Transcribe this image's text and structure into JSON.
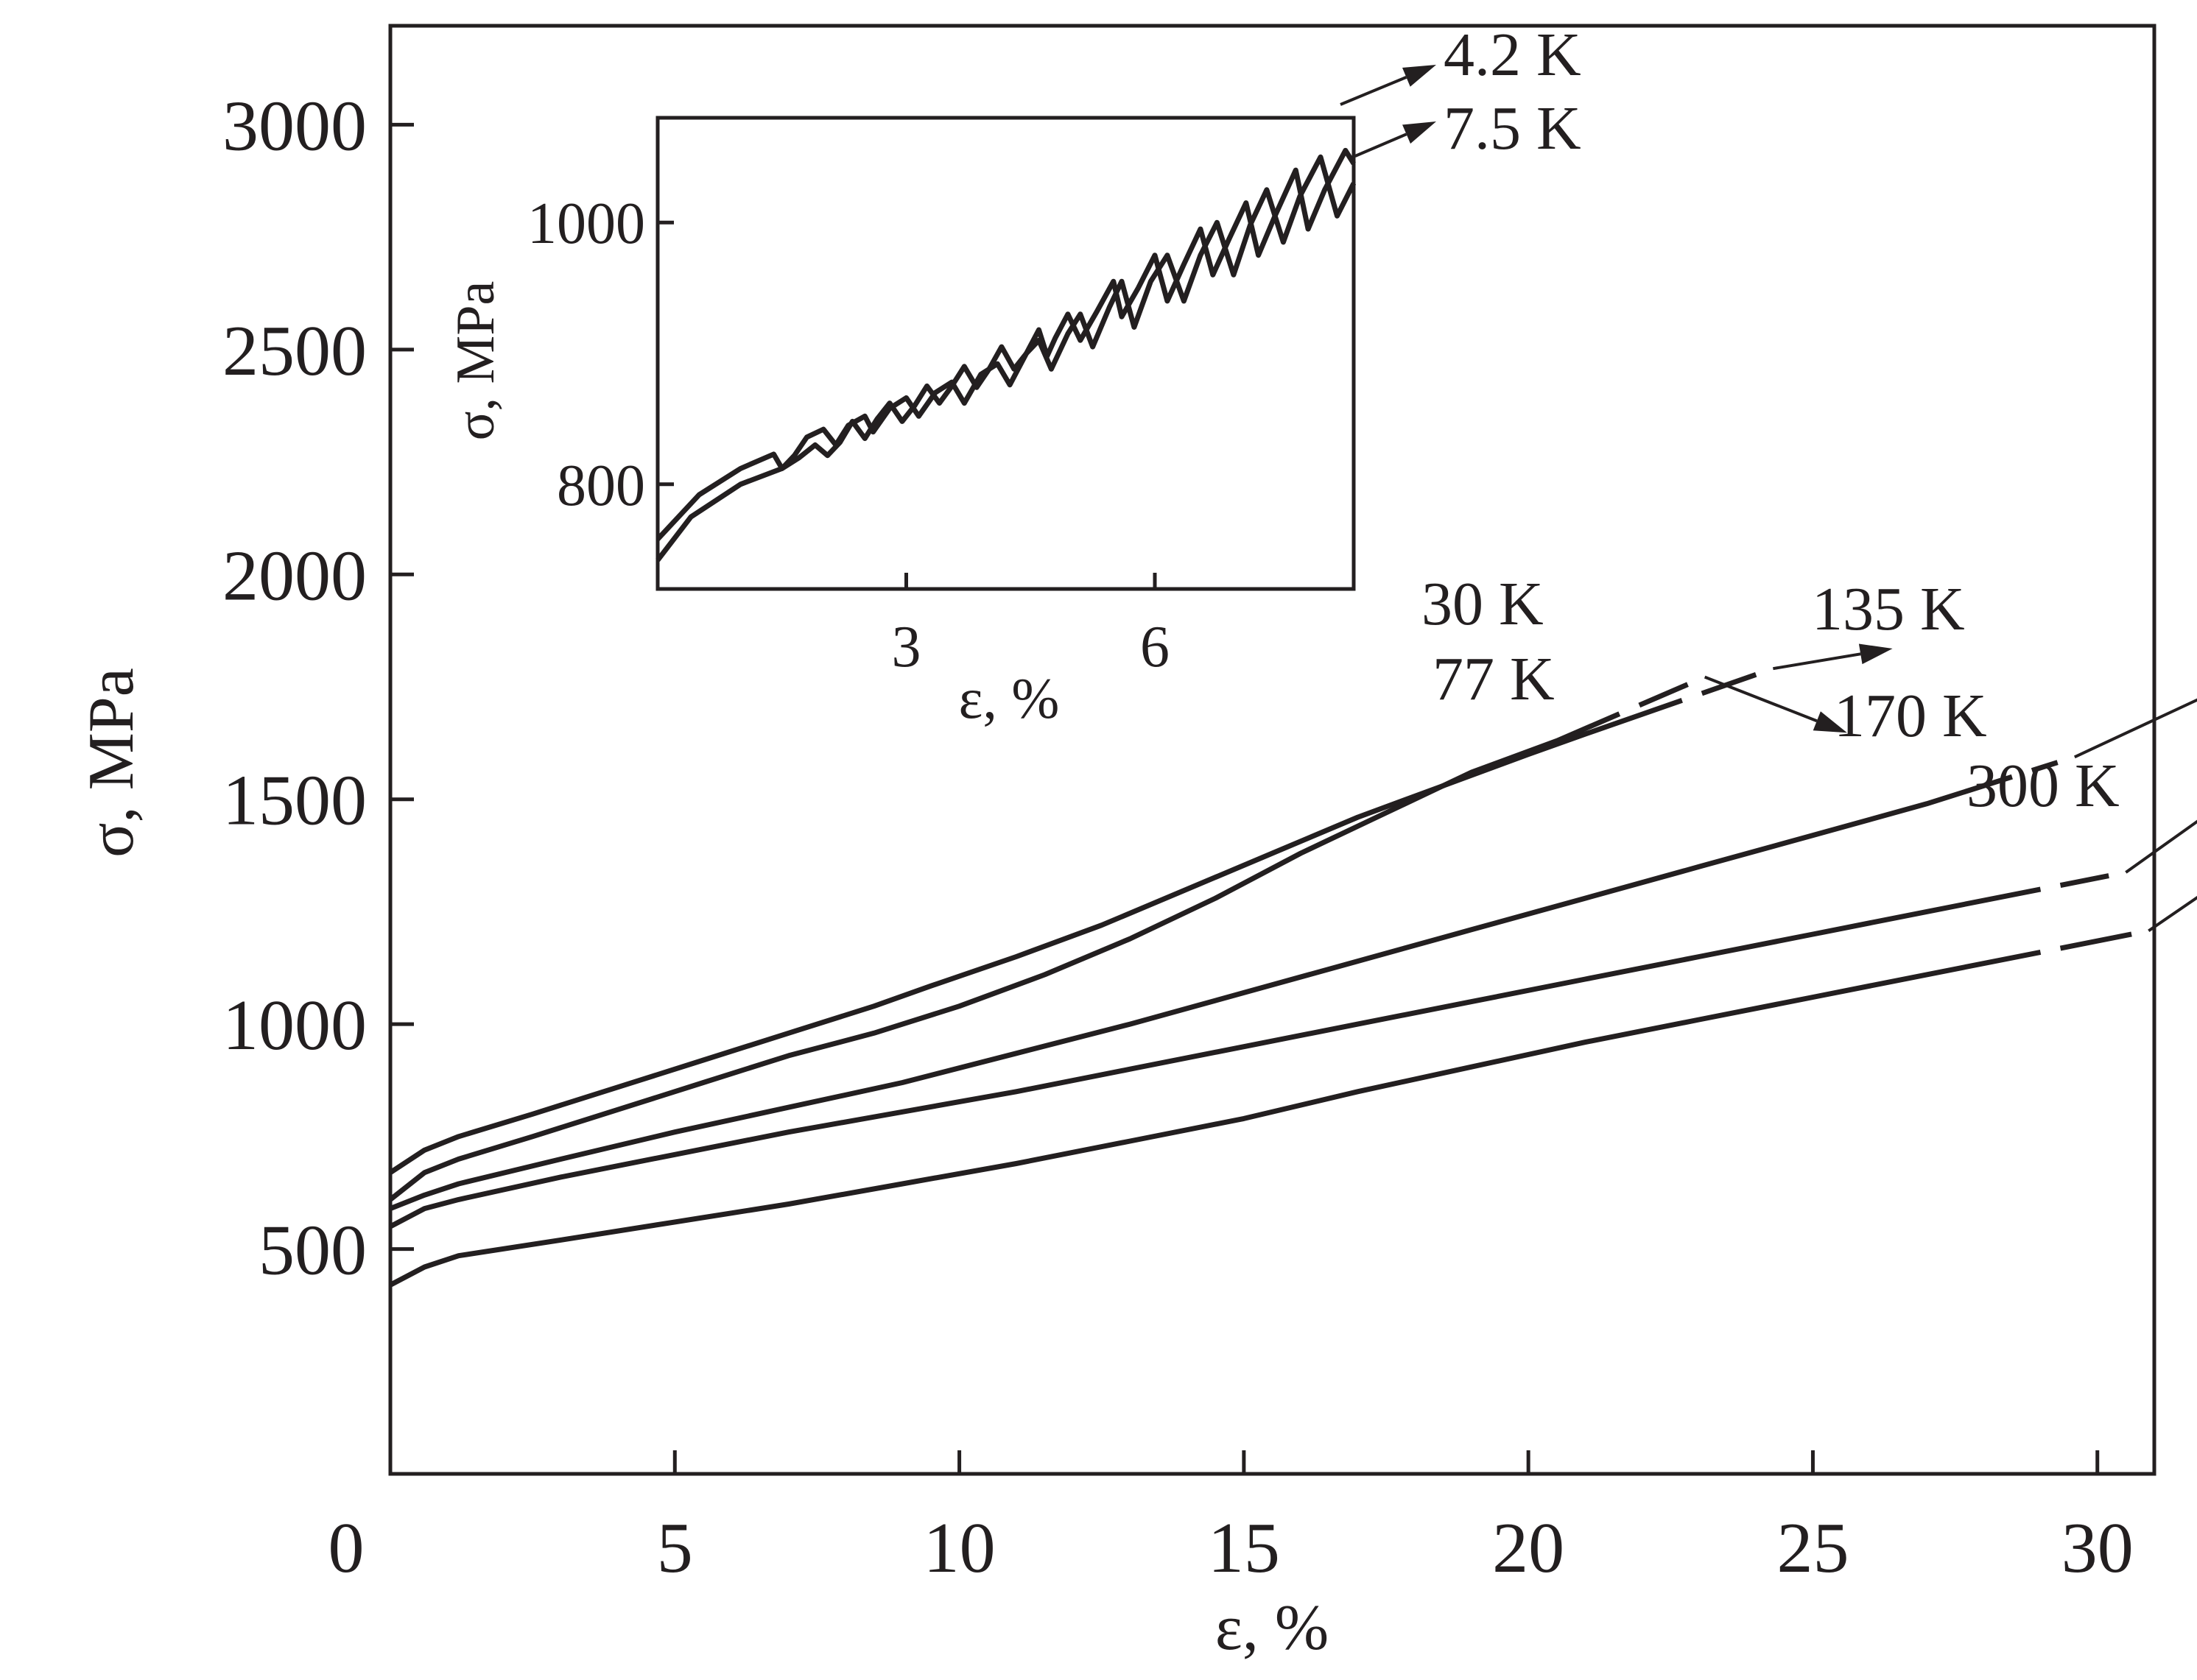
{
  "chart_data": [
    {
      "type": "line",
      "xlabel": "ε, %",
      "ylabel": "σ, MPa",
      "xlim": [
        0,
        31
      ],
      "ylim": [
        0,
        3220
      ],
      "x_ticks": [
        0,
        5,
        10,
        15,
        20,
        25,
        30
      ],
      "y_ticks": [
        500,
        1000,
        1500,
        2000,
        2500,
        3000
      ],
      "grid": false,
      "legend": "none",
      "series": [
        {
          "name": "4.2 K",
          "dashed_arrow": true,
          "points": []
        },
        {
          "name": "7.5 K",
          "dashed_arrow": true,
          "points": []
        },
        {
          "name": "30 K",
          "points": [
            [
              0,
              670
            ],
            [
              0.6,
              720
            ],
            [
              1.2,
              750
            ],
            [
              2.5,
              800
            ],
            [
              4,
              860
            ],
            [
              5.5,
              920
            ],
            [
              7,
              980
            ],
            [
              8.5,
              1040
            ],
            [
              9.5,
              1085
            ],
            [
              11,
              1150
            ],
            [
              12.5,
              1220
            ],
            [
              14,
              1300
            ],
            [
              15.5,
              1380
            ],
            [
              17,
              1460
            ],
            [
              18.5,
              1530
            ],
            [
              20,
              1600
            ],
            [
              21,
              1645
            ],
            [
              22.7,
              1720
            ]
          ],
          "dashed_from_x": 22.7,
          "dash_to_x": 24,
          "arrow_to": [
            26.4,
            1835
          ]
        },
        {
          "name": "77 K",
          "points": [
            [
              0,
              610
            ],
            [
              0.6,
              670
            ],
            [
              1.2,
              700
            ],
            [
              2.5,
              750
            ],
            [
              4,
              810
            ],
            [
              5.5,
              870
            ],
            [
              7,
              930
            ],
            [
              8.5,
              980
            ],
            [
              10,
              1040
            ],
            [
              11.5,
              1110
            ],
            [
              13,
              1190
            ],
            [
              14.5,
              1280
            ],
            [
              16,
              1380
            ],
            [
              17.5,
              1470
            ],
            [
              19,
              1560
            ],
            [
              20.5,
              1630
            ],
            [
              21.6,
              1690
            ]
          ],
          "dashed_from_x": 21.6,
          "dash_to_x": 22.8,
          "arrow_to": [
            25.6,
            1648
          ]
        },
        {
          "name": "135 K",
          "points": [
            [
              0,
              590
            ],
            [
              0.6,
              620
            ],
            [
              1.2,
              645
            ],
            [
              3,
              700
            ],
            [
              5,
              760
            ],
            [
              7,
              815
            ],
            [
              9,
              870
            ],
            [
              11,
              935
            ],
            [
              13,
              1000
            ],
            [
              15,
              1070
            ],
            [
              17,
              1140
            ],
            [
              19,
              1210
            ],
            [
              21,
              1280
            ],
            [
              23,
              1350
            ],
            [
              25,
              1420
            ],
            [
              27,
              1490
            ],
            [
              28.5,
              1550
            ]
          ],
          "dashed_from_x": 28.5,
          "dash_to_x": 29.3,
          "arrow_to": [
            32.5,
            1765
          ]
        },
        {
          "name": "170 K",
          "points": [
            [
              0,
              550
            ],
            [
              0.6,
              590
            ],
            [
              1.2,
              610
            ],
            [
              3,
              660
            ],
            [
              5,
              710
            ],
            [
              7,
              760
            ],
            [
              9,
              805
            ],
            [
              11,
              850
            ],
            [
              13,
              900
            ],
            [
              15,
              950
            ],
            [
              17,
              1000
            ],
            [
              19,
              1050
            ],
            [
              21,
              1100
            ],
            [
              23,
              1150
            ],
            [
              25,
              1200
            ],
            [
              27,
              1250
            ],
            [
              29,
              1300
            ]
          ],
          "dashed_from_x": 29,
          "dash_to_x": 30.2,
          "arrow_to": [
            32.8,
            1545
          ]
        },
        {
          "name": "300 K",
          "points": [
            [
              0,
              420
            ],
            [
              0.6,
              460
            ],
            [
              1.2,
              485
            ],
            [
              3,
              520
            ],
            [
              5,
              560
            ],
            [
              7,
              600
            ],
            [
              9,
              645
            ],
            [
              11,
              690
            ],
            [
              13,
              740
            ],
            [
              15,
              790
            ],
            [
              17,
              850
            ],
            [
              19,
              905
            ],
            [
              21,
              960
            ],
            [
              23,
              1010
            ],
            [
              25,
              1060
            ],
            [
              27,
              1110
            ],
            [
              29,
              1160
            ]
          ],
          "dashed_from_x": 29,
          "dash_to_x": 30.6,
          "arrow_to": [
            34.5,
            1520
          ]
        }
      ]
    },
    {
      "type": "line",
      "inset": true,
      "xlabel": "ε, %",
      "ylabel": "σ, MPa",
      "xlim": [
        0,
        8.4
      ],
      "ylim": [
        720,
        1080
      ],
      "x_ticks": [
        3,
        6
      ],
      "y_ticks": [
        800,
        1000
      ],
      "grid": false,
      "series": [
        {
          "name": "4.2 K",
          "points": [
            [
              0,
              742
            ],
            [
              0.4,
              775
            ],
            [
              1,
              800
            ],
            [
              1.5,
              812
            ],
            [
              1.7,
              820
            ],
            [
              1.9,
              830
            ],
            [
              2.05,
              822
            ],
            [
              2.2,
              832
            ],
            [
              2.35,
              848
            ],
            [
              2.5,
              835
            ],
            [
              2.65,
              850
            ],
            [
              2.8,
              862
            ],
            [
              2.95,
              848
            ],
            [
              3.1,
              860
            ],
            [
              3.25,
              875
            ],
            [
              3.4,
              862
            ],
            [
              3.55,
              875
            ],
            [
              3.7,
              890
            ],
            [
              3.85,
              874
            ],
            [
              4,
              888
            ],
            [
              4.15,
              905
            ],
            [
              4.3,
              888
            ],
            [
              4.45,
              900
            ],
            [
              4.6,
              918
            ],
            [
              4.7,
              898
            ],
            [
              4.8,
              912
            ],
            [
              4.95,
              930
            ],
            [
              5.1,
              910
            ],
            [
              5.3,
              932
            ],
            [
              5.5,
              955
            ],
            [
              5.6,
              928
            ],
            [
              5.8,
              950
            ],
            [
              6,
              975
            ],
            [
              6.15,
              940
            ],
            [
              6.35,
              968
            ],
            [
              6.55,
              995
            ],
            [
              6.7,
              960
            ],
            [
              6.9,
              988
            ],
            [
              7.1,
              1015
            ],
            [
              7.25,
              975
            ],
            [
              7.45,
              1005
            ],
            [
              7.7,
              1040
            ],
            [
              7.85,
              995
            ],
            [
              8.05,
              1025
            ],
            [
              8.3,
              1055
            ],
            [
              8.4,
              1045
            ]
          ]
        },
        {
          "name": "7.5 K",
          "points": [
            [
              0,
              758
            ],
            [
              0.5,
              792
            ],
            [
              1,
              812
            ],
            [
              1.4,
              823
            ],
            [
              1.5,
              812
            ],
            [
              1.65,
              822
            ],
            [
              1.8,
              836
            ],
            [
              2,
              842
            ],
            [
              2.15,
              830
            ],
            [
              2.3,
              845
            ],
            [
              2.5,
              852
            ],
            [
              2.6,
              840
            ],
            [
              2.8,
              858
            ],
            [
              3,
              866
            ],
            [
              3.15,
              852
            ],
            [
              3.35,
              870
            ],
            [
              3.55,
              878
            ],
            [
              3.7,
              862
            ],
            [
              3.9,
              884
            ],
            [
              4.1,
              892
            ],
            [
              4.25,
              876
            ],
            [
              4.45,
              900
            ],
            [
              4.6,
              910
            ],
            [
              4.75,
              888
            ],
            [
              4.95,
              915
            ],
            [
              5.1,
              930
            ],
            [
              5.25,
              905
            ],
            [
              5.45,
              935
            ],
            [
              5.6,
              955
            ],
            [
              5.75,
              920
            ],
            [
              5.95,
              955
            ],
            [
              6.15,
              975
            ],
            [
              6.35,
              940
            ],
            [
              6.55,
              975
            ],
            [
              6.75,
              1000
            ],
            [
              6.95,
              960
            ],
            [
              7.15,
              998
            ],
            [
              7.35,
              1025
            ],
            [
              7.55,
              985
            ],
            [
              7.75,
              1020
            ],
            [
              8,
              1050
            ],
            [
              8.2,
              1005
            ],
            [
              8.4,
              1030
            ]
          ]
        }
      ]
    }
  ]
}
